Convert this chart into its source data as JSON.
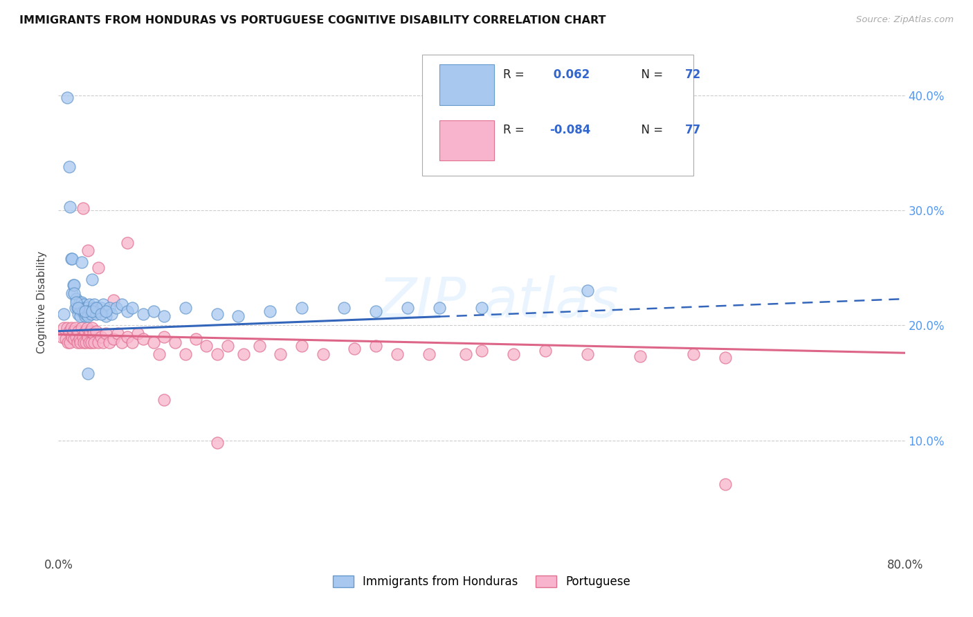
{
  "title": "IMMIGRANTS FROM HONDURAS VS PORTUGUESE COGNITIVE DISABILITY CORRELATION CHART",
  "source": "Source: ZipAtlas.com",
  "ylabel": "Cognitive Disability",
  "xlim": [
    0.0,
    0.8
  ],
  "ylim": [
    0.0,
    0.44
  ],
  "yticks": [
    0.1,
    0.2,
    0.3,
    0.4
  ],
  "ytick_labels": [
    "10.0%",
    "20.0%",
    "30.0%",
    "40.0%"
  ],
  "xticks": [
    0.0,
    0.16,
    0.32,
    0.48,
    0.64,
    0.8
  ],
  "blue_color": "#a8c8f0",
  "blue_edge": "#6699cc",
  "pink_color": "#f8b4cc",
  "pink_edge": "#e07090",
  "line_blue": "#3366bb",
  "line_pink": "#dd6688",
  "honduras_x": [
    0.005,
    0.008,
    0.01,
    0.011,
    0.012,
    0.013,
    0.014,
    0.015,
    0.016,
    0.017,
    0.018,
    0.019,
    0.02,
    0.021,
    0.021,
    0.022,
    0.022,
    0.023,
    0.024,
    0.025,
    0.025,
    0.026,
    0.026,
    0.027,
    0.028,
    0.028,
    0.029,
    0.03,
    0.031,
    0.032,
    0.033,
    0.034,
    0.035,
    0.036,
    0.037,
    0.038,
    0.04,
    0.042,
    0.045,
    0.048,
    0.05,
    0.055,
    0.06,
    0.065,
    0.07,
    0.08,
    0.09,
    0.1,
    0.12,
    0.15,
    0.17,
    0.2,
    0.23,
    0.27,
    0.3,
    0.33,
    0.36,
    0.4,
    0.013,
    0.015,
    0.017,
    0.019,
    0.022,
    0.025,
    0.028,
    0.032,
    0.036,
    0.04,
    0.045,
    0.5
  ],
  "honduras_y": [
    0.21,
    0.398,
    0.338,
    0.303,
    0.258,
    0.228,
    0.235,
    0.235,
    0.215,
    0.223,
    0.215,
    0.21,
    0.22,
    0.213,
    0.208,
    0.22,
    0.215,
    0.212,
    0.218,
    0.215,
    0.208,
    0.215,
    0.21,
    0.215,
    0.212,
    0.208,
    0.218,
    0.213,
    0.21,
    0.24,
    0.215,
    0.218,
    0.212,
    0.21,
    0.215,
    0.212,
    0.215,
    0.218,
    0.208,
    0.215,
    0.21,
    0.215,
    0.218,
    0.212,
    0.215,
    0.21,
    0.212,
    0.208,
    0.215,
    0.21,
    0.208,
    0.212,
    0.215,
    0.215,
    0.212,
    0.215,
    0.215,
    0.215,
    0.258,
    0.228,
    0.22,
    0.215,
    0.255,
    0.212,
    0.158,
    0.212,
    0.215,
    0.21,
    0.212,
    0.23
  ],
  "portuguese_x": [
    0.003,
    0.005,
    0.007,
    0.008,
    0.009,
    0.01,
    0.011,
    0.012,
    0.013,
    0.014,
    0.015,
    0.016,
    0.017,
    0.018,
    0.019,
    0.02,
    0.021,
    0.022,
    0.023,
    0.024,
    0.025,
    0.026,
    0.027,
    0.028,
    0.029,
    0.03,
    0.031,
    0.032,
    0.033,
    0.034,
    0.036,
    0.038,
    0.04,
    0.042,
    0.045,
    0.048,
    0.052,
    0.056,
    0.06,
    0.065,
    0.07,
    0.075,
    0.08,
    0.09,
    0.095,
    0.1,
    0.11,
    0.12,
    0.13,
    0.14,
    0.15,
    0.16,
    0.175,
    0.19,
    0.21,
    0.23,
    0.25,
    0.28,
    0.3,
    0.32,
    0.35,
    0.385,
    0.4,
    0.43,
    0.46,
    0.5,
    0.55,
    0.6,
    0.63,
    0.023,
    0.028,
    0.038,
    0.052,
    0.065,
    0.1,
    0.15,
    0.63
  ],
  "portuguese_y": [
    0.19,
    0.198,
    0.188,
    0.198,
    0.185,
    0.195,
    0.185,
    0.198,
    0.19,
    0.195,
    0.188,
    0.198,
    0.19,
    0.185,
    0.195,
    0.188,
    0.185,
    0.198,
    0.19,
    0.185,
    0.195,
    0.185,
    0.198,
    0.19,
    0.185,
    0.195,
    0.185,
    0.198,
    0.193,
    0.185,
    0.195,
    0.185,
    0.19,
    0.185,
    0.193,
    0.185,
    0.188,
    0.193,
    0.185,
    0.19,
    0.185,
    0.193,
    0.188,
    0.185,
    0.175,
    0.19,
    0.185,
    0.175,
    0.188,
    0.182,
    0.175,
    0.182,
    0.175,
    0.182,
    0.175,
    0.182,
    0.175,
    0.18,
    0.182,
    0.175,
    0.175,
    0.175,
    0.178,
    0.175,
    0.178,
    0.175,
    0.173,
    0.175,
    0.172,
    0.302,
    0.265,
    0.25,
    0.222,
    0.272,
    0.135,
    0.098,
    0.062
  ]
}
